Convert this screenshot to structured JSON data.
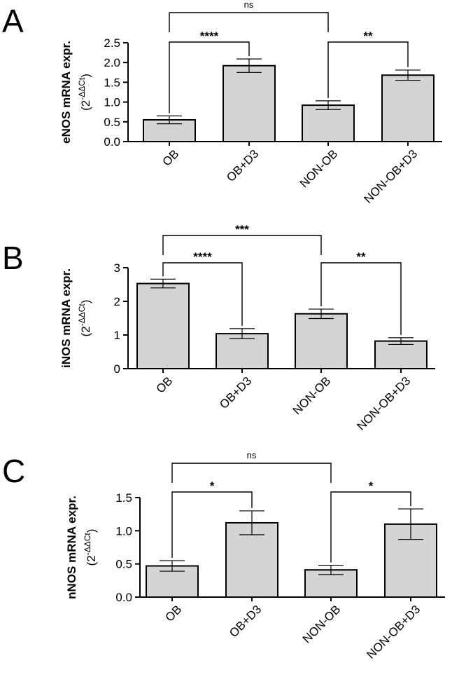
{
  "chart_data": [
    {
      "type": "bar",
      "panel": "A",
      "categories": [
        "OB",
        "OB+D3",
        "NON-OB",
        "NON-OB+D3"
      ],
      "values": [
        0.55,
        1.92,
        0.92,
        1.68
      ],
      "errors": [
        0.1,
        0.17,
        0.11,
        0.13
      ],
      "ylabel": "eNOS mRNA expr.",
      "ylabel_unit_base": "(2",
      "ylabel_unit_sup": "-ΔΔCt",
      "ylabel_unit_close": ")",
      "ylim": [
        0,
        2.5
      ],
      "yticks": [
        0.0,
        0.5,
        1.0,
        1.5,
        2.0,
        2.5
      ],
      "ytick_labels": [
        "0.0",
        "0.5",
        "1.0",
        "1.5",
        "2.0",
        "2.5"
      ],
      "comparisons": [
        {
          "from": 0,
          "to": 2,
          "label": "ns"
        },
        {
          "from": 0,
          "to": 1,
          "label": "****"
        },
        {
          "from": 2,
          "to": 3,
          "label": "**"
        }
      ]
    },
    {
      "type": "bar",
      "panel": "B",
      "categories": [
        "OB",
        "OB+D3",
        "NON-OB",
        "NON-OB+D3"
      ],
      "values": [
        2.53,
        1.04,
        1.63,
        0.82
      ],
      "errors": [
        0.13,
        0.15,
        0.14,
        0.1
      ],
      "ylabel": "iNOS mRNA expr.",
      "ylabel_unit_base": "(2",
      "ylabel_unit_sup": "-ΔΔCt",
      "ylabel_unit_close": ")",
      "ylim": [
        0,
        3
      ],
      "yticks": [
        0,
        1,
        2,
        3
      ],
      "ytick_labels": [
        "0",
        "1",
        "2",
        "3"
      ],
      "comparisons": [
        {
          "from": 0,
          "to": 2,
          "label": "***"
        },
        {
          "from": 0,
          "to": 1,
          "label": "****"
        },
        {
          "from": 2,
          "to": 3,
          "label": "**"
        }
      ]
    },
    {
      "type": "bar",
      "panel": "C",
      "categories": [
        "OB",
        "OB+D3",
        "NON-OB",
        "NON-OB+D3"
      ],
      "values": [
        0.47,
        1.12,
        0.41,
        1.1
      ],
      "errors": [
        0.08,
        0.18,
        0.07,
        0.23
      ],
      "ylabel": "nNOS mRNA expr.",
      "ylabel_unit_base": "(2",
      "ylabel_unit_sup": "-ΔΔCt",
      "ylabel_unit_close": ")",
      "ylim": [
        0,
        1.5
      ],
      "yticks": [
        0.0,
        0.5,
        1.0,
        1.5
      ],
      "ytick_labels": [
        "0.0",
        "0.5",
        "1.0",
        "1.5"
      ],
      "comparisons": [
        {
          "from": 0,
          "to": 2,
          "label": "ns"
        },
        {
          "from": 0,
          "to": 1,
          "label": "*"
        },
        {
          "from": 2,
          "to": 3,
          "label": "*"
        }
      ]
    }
  ],
  "colors": {
    "bar_fill": "#d4d4d4",
    "stroke": "#000000"
  }
}
